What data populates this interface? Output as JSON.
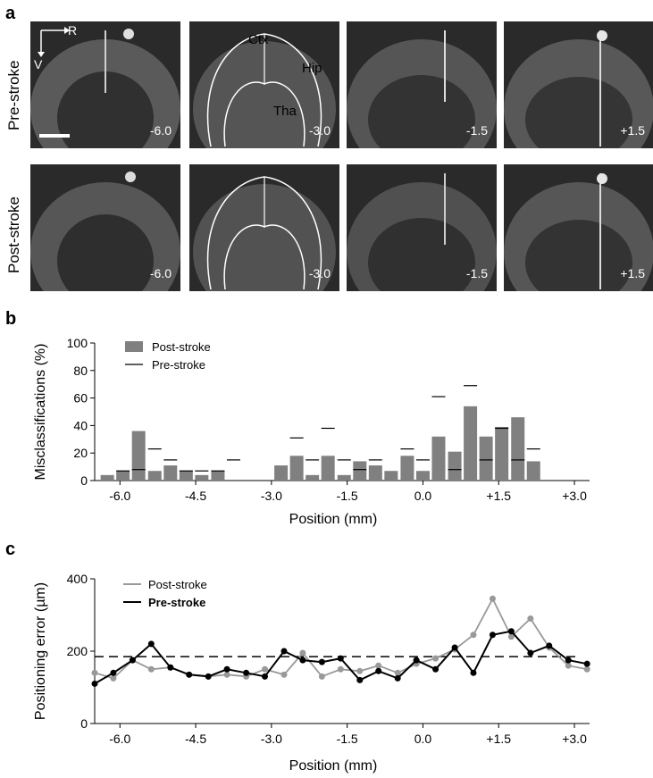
{
  "panels": {
    "a": {
      "letter": "a",
      "rows": [
        "Pre-stroke",
        "Post-stroke"
      ],
      "positions": [
        "-6.0",
        "-3.0",
        "-1.5",
        "+1.5"
      ],
      "labels": {
        "ctx": "Ctx",
        "hip": "Hip",
        "tha": "Tha",
        "right": "R",
        "ventral": "V"
      }
    },
    "b": {
      "letter": "b"
    },
    "c": {
      "letter": "c"
    }
  },
  "chart_data": [
    {
      "type": "bar",
      "ylabel": "Misclassifications (%)",
      "xlabel": "Position (mm)",
      "ylim": [
        0,
        100
      ],
      "yticks": [
        0,
        20,
        40,
        60,
        80,
        100
      ],
      "xticks": [
        "-6.0",
        "-4.5",
        "-3.0",
        "-1.5",
        "0.0",
        "+1.5",
        "+3.0"
      ],
      "xtick_values": [
        -6.0,
        -4.5,
        -3.0,
        -1.5,
        0.0,
        1.5,
        3.0
      ],
      "xlim": [
        -6.5,
        3.3
      ],
      "legend": [
        "Post-stroke",
        "Pre-stroke"
      ],
      "legend_position": "top-left",
      "x": [
        -6.25,
        -5.94,
        -5.63,
        -5.31,
        -5.0,
        -4.69,
        -4.38,
        -4.06,
        -3.75,
        -3.44,
        -3.13,
        -2.81,
        -2.5,
        -2.19,
        -1.88,
        -1.56,
        -1.25,
        -0.94,
        -0.63,
        -0.31,
        0.0,
        0.31,
        0.63,
        0.94,
        1.25,
        1.56,
        1.88,
        2.19,
        2.5,
        2.81
      ],
      "series": [
        {
          "name": "Post-stroke",
          "color": "#808080",
          "values": [
            4,
            7,
            36,
            7,
            11,
            7,
            4,
            7,
            0,
            0,
            0,
            11,
            18,
            4,
            18,
            4,
            14,
            11,
            7,
            18,
            7,
            32,
            21,
            54,
            32,
            39,
            46,
            14,
            0,
            0
          ]
        },
        {
          "name": "Pre-stroke",
          "color": "#000000",
          "values": [
            null,
            7,
            8,
            23,
            15,
            7,
            7,
            7,
            15,
            null,
            null,
            null,
            31,
            15,
            38,
            15,
            8,
            15,
            null,
            23,
            15,
            61,
            8,
            69,
            15,
            38,
            15,
            23,
            null,
            null
          ]
        }
      ]
    },
    {
      "type": "line",
      "ylabel": "Positioning error (µm)",
      "xlabel": "Position (mm)",
      "ylim": [
        0,
        400
      ],
      "yticks": [
        0,
        200,
        400
      ],
      "xticks": [
        "-6.0",
        "-4.5",
        "-3.0",
        "-1.5",
        "0.0",
        "+1.5",
        "+3.0"
      ],
      "xtick_values": [
        -6.0,
        -4.5,
        -3.0,
        -1.5,
        0.0,
        1.5,
        3.0
      ],
      "xlim": [
        -6.5,
        3.3
      ],
      "legend": [
        "Post-stroke",
        "Pre-stroke"
      ],
      "legend_position": "top-left",
      "reference_line": 185,
      "x": [
        -6.5,
        -6.13,
        -5.75,
        -5.38,
        -5.0,
        -4.63,
        -4.25,
        -3.88,
        -3.5,
        -3.13,
        -2.75,
        -2.38,
        -2.0,
        -1.63,
        -1.25,
        -0.88,
        -0.5,
        -0.13,
        0.25,
        0.63,
        1.0,
        1.38,
        1.75,
        2.13,
        2.5,
        2.88,
        3.25
      ],
      "series": [
        {
          "name": "Post-stroke",
          "color": "#999999",
          "values": [
            140,
            125,
            175,
            150,
            155,
            135,
            130,
            135,
            130,
            150,
            135,
            195,
            130,
            150,
            145,
            160,
            140,
            165,
            180,
            205,
            245,
            345,
            240,
            290,
            210,
            160,
            150
          ]
        },
        {
          "name": "Pre-stroke",
          "color": "#000000",
          "values": [
            110,
            140,
            175,
            220,
            155,
            135,
            130,
            150,
            140,
            130,
            200,
            175,
            170,
            180,
            120,
            145,
            125,
            175,
            150,
            210,
            140,
            245,
            255,
            195,
            215,
            175,
            165
          ]
        }
      ]
    }
  ]
}
